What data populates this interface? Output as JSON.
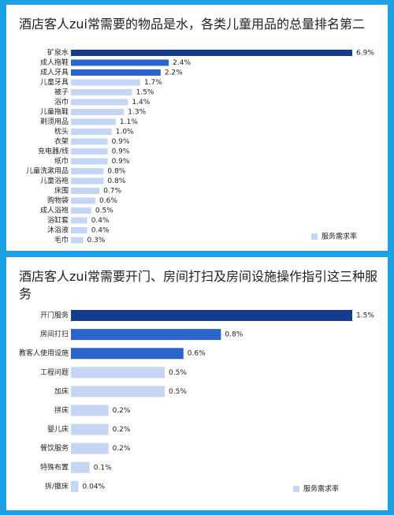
{
  "chart_data": [
    {
      "type": "barh",
      "title": "酒店客人zui常需要的物品是水，各类儿童用品的总量排名第二",
      "categories": [
        "矿泉水",
        "成人拖鞋",
        "成人牙具",
        "儿童牙具",
        "被子",
        "浴巾",
        "儿童拖鞋",
        "剃须用品",
        "枕头",
        "衣架",
        "充电器/线",
        "纸巾",
        "儿童洗漱用品",
        "儿童浴袍",
        "床围",
        "购物袋",
        "成人浴袍",
        "浴缸套",
        "沐浴液",
        "毛巾"
      ],
      "series": [
        {
          "name": "服务需求率",
          "color": "#c5d6f4",
          "colors": [
            "#15398c",
            "#2b64cc",
            "#2b64cc",
            "#c5d6f4",
            "#c5d6f4",
            "#c5d6f4",
            "#c5d6f4",
            "#c5d6f4",
            "#c5d6f4",
            "#c5d6f4",
            "#c5d6f4",
            "#c5d6f4",
            "#c5d6f4",
            "#c5d6f4",
            "#c5d6f4",
            "#c5d6f4",
            "#c5d6f4",
            "#c5d6f4",
            "#c5d6f4",
            "#c5d6f4"
          ],
          "values": [
            6.9,
            2.4,
            2.2,
            1.7,
            1.5,
            1.4,
            1.3,
            1.1,
            1.0,
            0.9,
            0.9,
            0.9,
            0.8,
            0.8,
            0.7,
            0.6,
            0.5,
            0.4,
            0.4,
            0.3
          ],
          "value_labels": [
            "6.9%",
            "2.4%",
            "2.2%",
            "1.7%",
            "1.5%",
            "1.4%",
            "1.3%",
            "1.1%",
            "1.0%",
            "0.9%",
            "0.9%",
            "0.9%",
            "0.8%",
            "0.8%",
            "0.7%",
            "0.6%",
            "0.5%",
            "0.4%",
            "0.4%",
            "0.3%"
          ]
        }
      ]
    },
    {
      "type": "barh",
      "title": "酒店客人zui常需要开门、房间打扫及房间设施操作指引这三种服务",
      "categories": [
        "开门服务",
        "房间打扫",
        "教客人使用设施",
        "工程问题",
        "加床",
        "拼床",
        "婴儿床",
        "餐饮服务",
        "特殊布置",
        "拆/撤床"
      ],
      "series": [
        {
          "name": "服务需求率",
          "color": "#c5d6f4",
          "colors": [
            "#15398c",
            "#2b64cc",
            "#2b64cc",
            "#c5d6f4",
            "#c5d6f4",
            "#c5d6f4",
            "#c5d6f4",
            "#c5d6f4",
            "#c5d6f4",
            "#c5d6f4"
          ],
          "values": [
            1.5,
            0.8,
            0.6,
            0.5,
            0.5,
            0.2,
            0.2,
            0.2,
            0.1,
            0.04
          ],
          "value_labels": [
            "1.5%",
            "0.8%",
            "0.6%",
            "0.5%",
            "0.5%",
            "0.2%",
            "0.2%",
            "0.2%",
            "0.1%",
            "0.04%"
          ]
        }
      ]
    }
  ]
}
